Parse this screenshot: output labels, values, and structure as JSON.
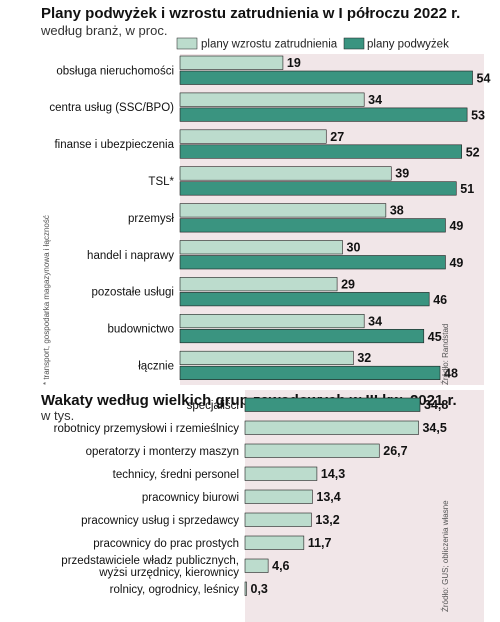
{
  "colors": {
    "light": "#bcdccd",
    "dark": "#3a9480",
    "panel": "#f1e6e8",
    "bar_stroke": "#1f1f1f"
  },
  "chart_data": [
    {
      "type": "bar",
      "orientation": "horizontal",
      "title": "Plany podwyżek i wzrostu zatrudnienia w I półroczu 2022 r.",
      "subtitle": "według branż, w proc.",
      "categories": [
        "obsługa nieruchomości",
        "centra usług (SSC/BPO)",
        "finanse i ubezpieczenia",
        "TSL*",
        "przemysł",
        "handel i naprawy",
        "pozostałe usługi",
        "budownictwo",
        "łącznie"
      ],
      "series": [
        {
          "name": "plany wzrostu zatrudnienia",
          "values": [
            19,
            34,
            27,
            39,
            38,
            30,
            29,
            34,
            32
          ],
          "labels": [
            "19",
            "34",
            "27",
            "39",
            "38",
            "30",
            "29",
            "34",
            "32"
          ]
        },
        {
          "name": "plany podwyżek",
          "values": [
            54,
            53,
            52,
            51,
            49,
            49,
            46,
            45,
            48
          ],
          "labels": [
            "54",
            "53",
            "52",
            "51",
            "49",
            "49",
            "46",
            "45",
            "48"
          ]
        }
      ],
      "legend_position": "top",
      "footnote": "* transport, gospodarka magazynowa i łączność",
      "source": "Źródło: Randstad",
      "xlim": [
        0,
        60
      ],
      "grid": false
    },
    {
      "type": "bar",
      "orientation": "horizontal",
      "title": "Wakaty według wielkich grup zawodowych w III kw. 2021 r.",
      "subtitle": "w tys.",
      "categories": [
        "specjaliści",
        "robotnicy przemysłowi i rzemieślnicy",
        "operatorzy i monterzy maszyn",
        "technicy, średni personel",
        "pracownicy biurowi",
        "pracownicy usług i sprzedawcy",
        "pracownicy do prac prostych",
        "przedstawiciele władz publicznych, wyżsi urzędnicy, kierownicy",
        "rolnicy, ogrodnicy, leśnicy"
      ],
      "values": [
        34.8,
        34.5,
        26.7,
        14.3,
        13.4,
        13.2,
        11.7,
        4.6,
        0.3
      ],
      "labels": [
        "34,8",
        "34,5",
        "26,7",
        "14,3",
        "13,4",
        "13,2",
        "11,7",
        "4,6",
        "0,3"
      ],
      "highlight_index": 0,
      "source": "Źródło: GUS; obliczenia własne",
      "xlim": [
        0,
        40
      ],
      "grid": false
    }
  ]
}
